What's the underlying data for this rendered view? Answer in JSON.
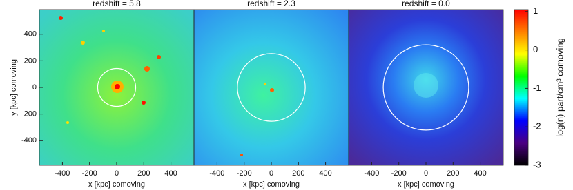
{
  "chart_data": [
    {
      "type": "image",
      "title": "redshift = 5.8",
      "xlabel": "x [kpc] comoving",
      "ylabel": "y [kpc] comoving",
      "xlim": [
        -570,
        570
      ],
      "ylim": [
        -585,
        585
      ],
      "xticks": [
        -400,
        -200,
        0,
        200,
        400
      ],
      "yticks": [
        -400,
        -200,
        0,
        200,
        400
      ],
      "circle_radius": 140
    },
    {
      "type": "image",
      "title": "redshift = 2.3",
      "xlabel": "x [kpc] comoving",
      "xlim": [
        -570,
        570
      ],
      "ylim": [
        -585,
        585
      ],
      "xticks": [
        -400,
        -200,
        0,
        200,
        400
      ],
      "circle_radius": 250
    },
    {
      "type": "image",
      "title": "redshift = 0.0",
      "xlabel": "x [kpc] comoving",
      "xlim": [
        -570,
        570
      ],
      "ylim": [
        -585,
        585
      ],
      "xticks": [
        -400,
        -200,
        0,
        200,
        400
      ],
      "circle_radius": 315
    },
    {
      "type": "colorbar",
      "label": "log(n) part/cm³ comoving",
      "ylim": [
        -3,
        1.05
      ],
      "yticks": [
        -3,
        -2,
        -1,
        0,
        1
      ],
      "colors": [
        "#000000",
        "#4b0082",
        "#0000ff",
        "#00ffff",
        "#00ff00",
        "#ffff00",
        "#ff8000",
        "#ff0000"
      ]
    }
  ]
}
